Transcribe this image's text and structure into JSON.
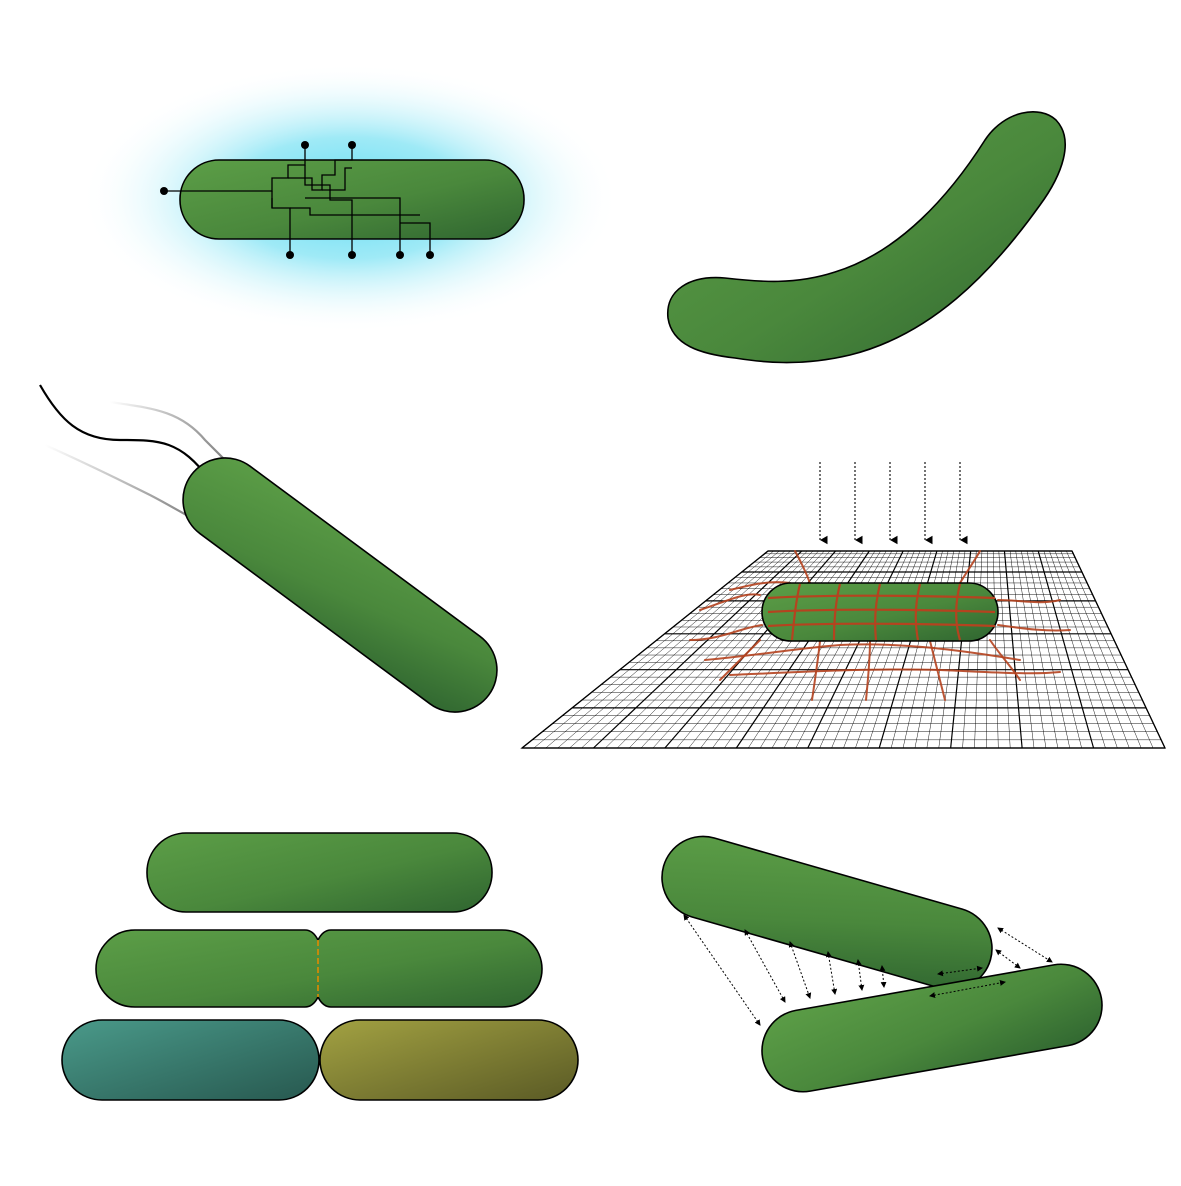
{
  "panels": [
    {
      "id": "circuit-bacterium",
      "description_icon": "circuit-icon"
    },
    {
      "id": "curved-bacterium",
      "description_icon": "curve-icon"
    },
    {
      "id": "flagellated-bacterium",
      "description_icon": "flagella-icon"
    },
    {
      "id": "surface-bacterium",
      "description_icon": "mesh-icon"
    },
    {
      "id": "dividing-bacteria",
      "description_icon": "division-icon"
    },
    {
      "id": "interacting-bacteria",
      "description_icon": "arrows-icon"
    }
  ],
  "colors": {
    "cell_light": "#5a9a45",
    "cell_dark": "#2f6530",
    "glow": "#7fe3f5",
    "daughter_teal_light": "#4a9a8a",
    "daughter_teal_dark": "#27584f",
    "daughter_olive_light": "#a0a040",
    "daughter_olive_dark": "#5a5a25",
    "mesh_red": "#b5431f",
    "septum": "#e08a00"
  }
}
